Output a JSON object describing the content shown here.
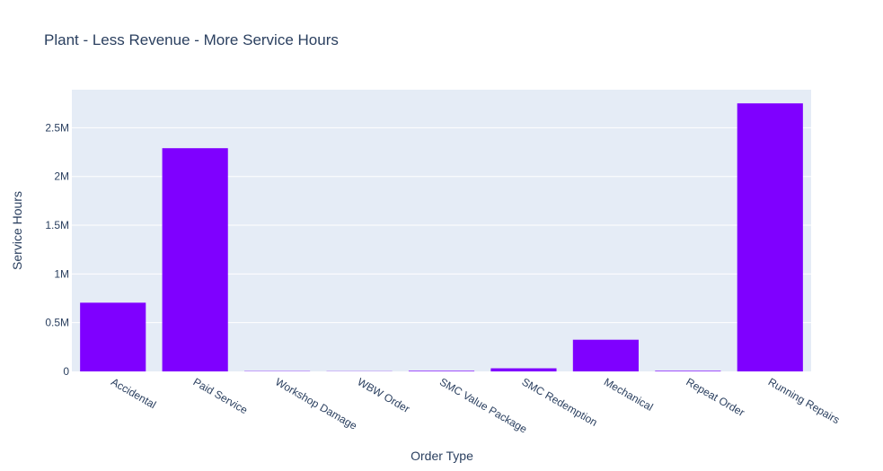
{
  "chart_data": {
    "type": "bar",
    "title": "Plant - Less Revenue - More Service Hours",
    "xlabel": "Order Type",
    "ylabel": "Service Hours",
    "categories": [
      "Accidental",
      "Paid Service",
      "Workshop Damage",
      "WBW Order",
      "SMC Value Package",
      "SMC Redemption",
      "Mechanical",
      "Repeat Order",
      "Running Repairs"
    ],
    "values": [
      705000,
      2290000,
      3000,
      2000,
      6000,
      32000,
      325000,
      6000,
      2750000
    ],
    "ylim": [
      0,
      2890000
    ],
    "yticks": [
      0,
      500000,
      1000000,
      1500000,
      2000000,
      2500000
    ],
    "ytick_labels": [
      "0",
      "0.5M",
      "1M",
      "1.5M",
      "2M",
      "2.5M"
    ],
    "grid": true,
    "colors": {
      "bar": "#7f00ff",
      "plot_bg": "#e5ecf6",
      "grid": "#ffffff",
      "text": "#2a3f5f"
    }
  }
}
